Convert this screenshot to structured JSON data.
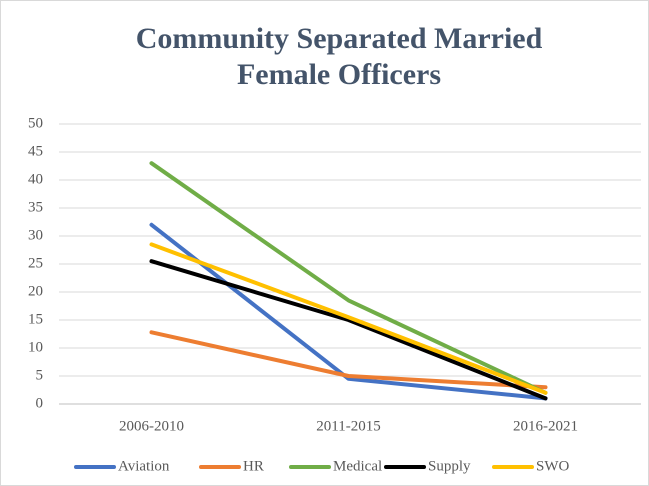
{
  "chart_data": {
    "type": "line",
    "title": "Community Separated Married Female Officers",
    "categories": [
      "2006-2010",
      "2011-2015",
      "2016-2021"
    ],
    "series": [
      {
        "name": "Aviation",
        "color": "#4472c4",
        "values": [
          32,
          4.5,
          1
        ]
      },
      {
        "name": "HR",
        "color": "#ed7d31",
        "values": [
          12.8,
          5,
          3
        ]
      },
      {
        "name": "Medical",
        "color": "#70ad47",
        "values": [
          43,
          18.5,
          2
        ]
      },
      {
        "name": "Supply",
        "color": "#000000",
        "values": [
          25.5,
          15,
          1
        ]
      },
      {
        "name": "SWO",
        "color": "#ffc000",
        "values": [
          28.5,
          15.5,
          2
        ]
      }
    ],
    "ylim": [
      0,
      50
    ],
    "yticks": [
      0,
      5,
      10,
      15,
      20,
      25,
      30,
      35,
      40,
      45,
      50
    ],
    "grid": true,
    "legend": "bottom"
  }
}
